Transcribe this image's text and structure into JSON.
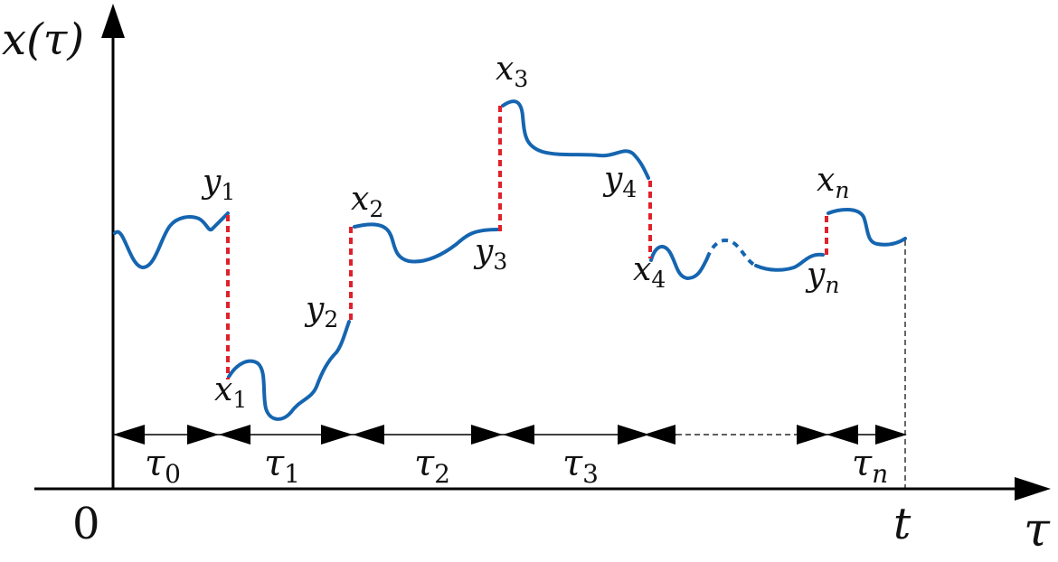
{
  "axes": {
    "y_label": "x(τ)",
    "x_label": "τ",
    "origin": "0",
    "end": "t"
  },
  "points": {
    "x1": {
      "base": "x",
      "sub": "1"
    },
    "x2": {
      "base": "x",
      "sub": "2"
    },
    "x3": {
      "base": "x",
      "sub": "3"
    },
    "x4": {
      "base": "x",
      "sub": "4"
    },
    "xn": {
      "base": "x",
      "sub": "n"
    },
    "y1": {
      "base": "y",
      "sub": "1"
    },
    "y2": {
      "base": "y",
      "sub": "2"
    },
    "y3": {
      "base": "y",
      "sub": "3"
    },
    "y4": {
      "base": "y",
      "sub": "4"
    },
    "yn": {
      "base": "y",
      "sub": "n"
    }
  },
  "intervals": [
    {
      "base": "τ",
      "sub": "0"
    },
    {
      "base": "τ",
      "sub": "1"
    },
    {
      "base": "τ",
      "sub": "2"
    },
    {
      "base": "τ",
      "sub": "3"
    },
    {
      "base": "τ",
      "sub": "n"
    }
  ],
  "colors": {
    "trajectory": "#1565b0",
    "jump": "#e0202a",
    "axis": "#000000"
  }
}
